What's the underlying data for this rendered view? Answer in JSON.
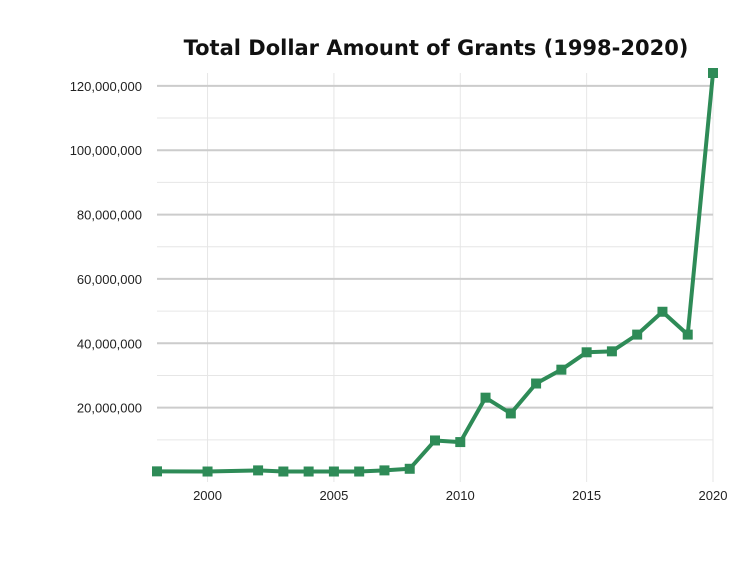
{
  "chart_data": {
    "type": "line",
    "title": "Total Dollar Amount of Grants (1998-2020)",
    "xlabel": "",
    "ylabel": "",
    "x": [
      1998,
      2000,
      2002,
      2003,
      2004,
      2005,
      2006,
      2007,
      2008,
      2009,
      2010,
      2011,
      2012,
      2013,
      2014,
      2015,
      2016,
      2017,
      2018,
      2019,
      2020
    ],
    "series": [
      {
        "values": [
          200000,
          150000,
          500000,
          150000,
          150000,
          150000,
          150000,
          500000,
          1000000,
          9800000,
          9300000,
          23100000,
          18200000,
          27500000,
          31800000,
          37200000,
          37500000,
          42700000,
          49800000,
          42700000,
          124000000
        ]
      }
    ],
    "xlim": [
      1998,
      2020
    ],
    "ylim": [
      0,
      124000000
    ],
    "x_ticks": [
      2000,
      2005,
      2010,
      2015,
      2020
    ],
    "x_tick_labels": [
      "2000",
      "2005",
      "2010",
      "2015",
      "2020"
    ],
    "y_ticks": [
      20000000,
      40000000,
      60000000,
      80000000,
      100000000,
      120000000
    ],
    "y_tick_labels": [
      "20,000,000",
      "40,000,000",
      "60,000,000",
      "80,000,000",
      "100,000,000",
      "120,000,000"
    ],
    "grid": true,
    "legend": "none",
    "line_color": "#2e8b57"
  }
}
